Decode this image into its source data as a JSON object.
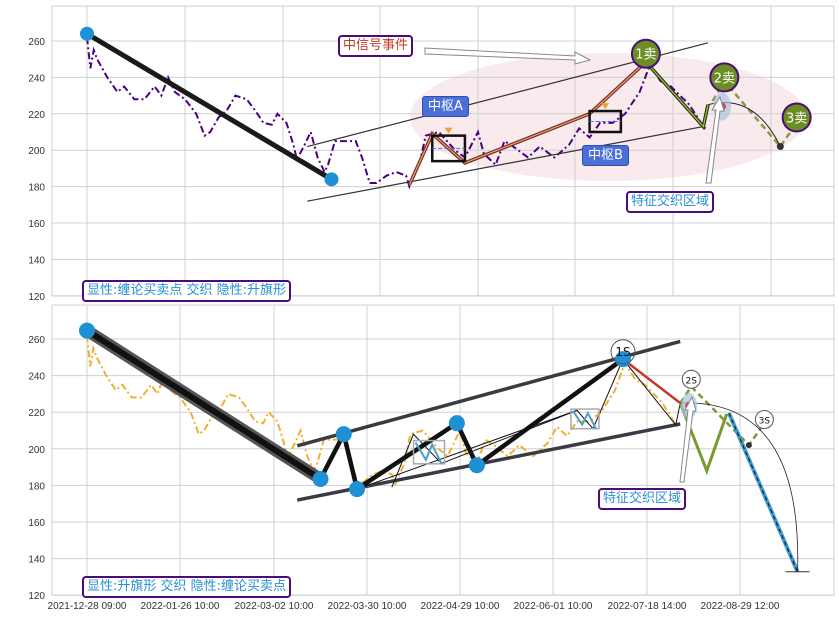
{
  "chart_data": [
    {
      "type": "line",
      "panel": "top",
      "xlabel": "",
      "ylabel": "",
      "ylim": [
        120,
        280
      ],
      "y_ticks": [
        120,
        140,
        160,
        180,
        200,
        220,
        240,
        260
      ],
      "x_ticks": [
        "2021-12-28 09:00",
        "2022-01-26 10:00",
        "2022-03-02 10:00",
        "2022-03-30 10:00",
        "2022-04-29 10:00",
        "2022-06-01 10:00",
        "2022-07-18 14:00",
        "2022-08-29 12:00"
      ],
      "x_tick_labels_visible": false,
      "grid": true,
      "series_color": "#4b0082",
      "series_style": "dash-dot",
      "series": [
        {
          "points": [
            [
              "2021-12-28",
              262
            ],
            [
              "2021-12-29",
              245
            ],
            [
              "2021-12-30",
              255
            ],
            [
              "2021-12-31",
              250
            ],
            [
              "2022-01-03",
              240
            ],
            [
              "2022-01-06",
              232
            ],
            [
              "2022-01-08",
              235
            ],
            [
              "2022-01-11",
              228
            ],
            [
              "2022-01-14",
              228
            ],
            [
              "2022-01-17",
              235
            ],
            [
              "2022-01-19",
              230
            ],
            [
              "2022-01-21",
              240
            ],
            [
              "2022-01-23",
              232
            ],
            [
              "2022-01-26",
              228
            ],
            [
              "2022-01-30",
              220
            ],
            [
              "2022-02-02",
              208
            ],
            [
              "2022-02-04",
              210
            ],
            [
              "2022-02-07",
              218
            ],
            [
              "2022-02-10",
              222
            ],
            [
              "2022-02-13",
              230
            ],
            [
              "2022-02-17",
              228
            ],
            [
              "2022-02-20",
              222
            ],
            [
              "2022-02-23",
              215
            ],
            [
              "2022-02-26",
              214
            ],
            [
              "2022-02-28",
              220
            ],
            [
              "2022-03-03",
              215
            ],
            [
              "2022-03-05",
              203
            ],
            [
              "2022-03-06",
              195
            ],
            [
              "2022-03-08",
              202
            ],
            [
              "2022-03-10",
              210
            ],
            [
              "2022-03-12",
              196
            ],
            [
              "2022-03-14",
              188
            ],
            [
              "2022-03-15",
              192
            ],
            [
              "2022-03-17",
              205
            ],
            [
              "2022-03-20",
              205
            ],
            [
              "2022-03-23",
              205
            ],
            [
              "2022-03-25",
              195
            ],
            [
              "2022-03-27",
              182
            ],
            [
              "2022-03-29",
              182
            ],
            [
              "2022-04-01",
              186
            ],
            [
              "2022-04-04",
              188
            ],
            [
              "2022-04-07",
              186
            ],
            [
              "2022-04-08",
              180
            ],
            [
              "2022-04-11",
              192
            ],
            [
              "2022-04-13",
              208
            ],
            [
              "2022-04-17",
              210
            ],
            [
              "2022-04-22",
              200
            ],
            [
              "2022-04-25",
              196
            ],
            [
              "2022-04-29",
              210
            ],
            [
              "2022-05-01",
              198
            ],
            [
              "2022-05-05",
              192
            ],
            [
              "2022-05-08",
              205
            ],
            [
              "2022-05-11",
              202
            ],
            [
              "2022-05-16",
              196
            ],
            [
              "2022-05-20",
              202
            ],
            [
              "2022-05-25",
              196
            ],
            [
              "2022-05-30",
              203
            ],
            [
              "2022-06-03",
              212
            ],
            [
              "2022-06-08",
              207
            ],
            [
              "2022-06-13",
              215
            ],
            [
              "2022-06-19",
              215
            ],
            [
              "2022-06-25",
              220
            ],
            [
              "2022-07-02",
              232
            ],
            [
              "2022-07-07",
              247
            ],
            [
              "2022-07-12",
              238
            ],
            [
              "2022-07-17",
              235
            ],
            [
              "2022-07-21",
              230
            ],
            [
              "2022-07-25",
              225
            ],
            [
              "2022-07-30",
              215
            ],
            [
              "2022-08-01",
              212
            ]
          ]
        }
      ],
      "overlays": {
        "trend_down": [
          [
            "2021-12-28",
            264
          ],
          [
            "2022-03-16",
            184
          ]
        ],
        "trend_dots": [
          [
            "2021-12-28",
            264
          ],
          [
            "2022-03-16",
            184
          ]
        ],
        "channel_upper": [
          [
            "2022-03-09",
            202
          ],
          [
            "2022-08-02",
            259
          ]
        ],
        "channel_lower": [
          [
            "2022-03-09",
            172
          ],
          [
            "2022-07-31",
            213
          ]
        ],
        "up_path": [
          [
            "2022-04-08",
            181
          ],
          [
            "2022-04-15",
            209
          ],
          [
            "2022-04-25",
            193
          ],
          [
            "2022-06-08",
            220
          ],
          [
            "2022-07-05",
            248.5
          ]
        ],
        "down_path": [
          [
            "2022-07-05",
            248.5
          ],
          [
            "2022-07-31",
            213
          ],
          [
            "2022-08-02",
            225
          ]
        ],
        "dashed_path": [
          [
            "2022-08-04",
            227
          ],
          [
            "2022-08-09",
            238
          ],
          [
            "2022-09-02",
            202
          ],
          [
            "2022-09-09",
            215
          ]
        ],
        "arc": [
          [
            "2022-08-02",
            225
          ],
          [
            "2022-09-02",
            202
          ]
        ],
        "end_dot": [
          "2022-09-02",
          202
        ],
        "red_dot": [
          "2022-08-08",
          224
        ],
        "hubs": [
          {
            "label": "中枢A",
            "from": "2022-04-15",
            "to": "2022-04-25",
            "low": 194,
            "high": 208
          },
          {
            "label": "中枢B",
            "from": "2022-06-08",
            "to": "2022-06-23",
            "low": 210,
            "high": 221.5
          }
        ],
        "sell_points": [
          {
            "label": "1卖",
            "date": "2022-07-05",
            "value": 253
          },
          {
            "label": "2卖",
            "date": "2022-08-09",
            "value": 240
          },
          {
            "label": "3卖",
            "date": "2022-09-09",
            "value": 218
          }
        ]
      },
      "annotations": {
        "signal": "中信号事件",
        "zone": "特征交织区域",
        "legend": "显性:缠论买卖点 交织 隐性:升旗形"
      }
    },
    {
      "type": "line",
      "panel": "bottom",
      "xlabel": "",
      "ylabel": "",
      "ylim": [
        120,
        280
      ],
      "y_ticks": [
        120,
        140,
        160,
        180,
        200,
        220,
        240,
        260
      ],
      "x_ticks": [
        "2021-12-28 09:00",
        "2022-01-26 10:00",
        "2022-03-02 10:00",
        "2022-03-30 10:00",
        "2022-04-29 10:00",
        "2022-06-01 10:00",
        "2022-07-18 14:00",
        "2022-08-29 12:00"
      ],
      "x_tick_labels_visible": true,
      "grid": true,
      "series_color": "#f0b030",
      "series_style": "dash-dot",
      "overlays": {
        "main_path_thick": [
          [
            "2021-12-28",
            264.6
          ],
          [
            "2022-03-16",
            183.5
          ]
        ],
        "main_path": [
          [
            "2022-03-16",
            183.5
          ],
          [
            "2022-03-23",
            208
          ],
          [
            "2022-03-27",
            178
          ],
          [
            "2022-04-28",
            214
          ],
          [
            "2022-05-05",
            191
          ],
          [
            "2022-07-06",
            249
          ]
        ],
        "pivot_dots": [
          [
            "2021-12-28",
            264.6
          ],
          [
            "2022-03-16",
            183.5
          ],
          [
            "2022-03-23",
            208
          ],
          [
            "2022-03-27",
            178
          ],
          [
            "2022-04-28",
            214
          ],
          [
            "2022-05-05",
            191
          ],
          [
            "2022-07-06",
            249
          ]
        ],
        "channel_upper": [
          [
            "2022-03-09",
            201.6
          ],
          [
            "2022-08-02",
            258.7
          ]
        ],
        "channel_lower": [
          [
            "2022-03-09",
            172
          ],
          [
            "2022-08-02",
            213.6
          ]
        ],
        "thin_path": [
          [
            "2022-04-07",
            179
          ],
          [
            "2022-04-14",
            208
          ],
          [
            "2022-04-23",
            192
          ],
          [
            "2022-06-13",
            221
          ],
          [
            "2022-06-21",
            211
          ],
          [
            "2022-07-06",
            249
          ],
          [
            "2022-07-31",
            213
          ],
          [
            "2022-08-02",
            225
          ]
        ],
        "thin_path2": [
          [
            "2022-03-27",
            178
          ],
          [
            "2022-06-13",
            221
          ]
        ],
        "red_segment": [
          [
            "2022-07-06",
            249
          ],
          [
            "2022-08-02",
            225
          ]
        ],
        "olive_path": [
          [
            "2022-08-02",
            225
          ],
          [
            "2022-08-14",
            188
          ],
          [
            "2022-08-23",
            219
          ]
        ],
        "olive_dashed": [
          [
            "2022-08-02",
            225
          ],
          [
            "2022-08-07",
            234
          ],
          [
            "2022-09-02",
            202
          ],
          [
            "2022-09-09",
            214
          ]
        ],
        "blue_dashed": [
          [
            "2022-08-24",
            219.5
          ],
          [
            "2022-09-24",
            132.8
          ]
        ],
        "arc": [
          [
            "2022-08-02",
            225
          ],
          [
            "2022-09-24",
            132.8
          ]
        ],
        "end_dot": [
          "2022-09-02",
          202
        ],
        "red_dot": [
          "2022-08-06",
          223.5
        ],
        "boxes": [
          {
            "from": "2022-04-14",
            "to": "2022-04-24",
            "low": 191.8,
            "high": 204.5
          },
          {
            "from": "2022-06-10",
            "to": "2022-06-24",
            "low": 211,
            "high": 221.7
          }
        ],
        "sell_points": [
          {
            "label": "1S",
            "date": "2022-07-06",
            "value": 253
          },
          {
            "label": "2S",
            "date": "2022-08-07",
            "value": 238
          },
          {
            "label": "3S",
            "date": "2022-09-09",
            "value": 216
          }
        ]
      },
      "annotations": {
        "zone": "特征交织区域",
        "legend": "显性:升旗形 交织 隐性:缠论买卖点"
      }
    }
  ],
  "colors": {
    "blue_dot": "#1e90d6",
    "olive": "#6b8e23",
    "annotation_border": "#4b0b7a",
    "annotation_text_blue": "#2a8fd0",
    "annotation_text_red": "#c0392b",
    "hub_bg": "#4a6fd8"
  }
}
